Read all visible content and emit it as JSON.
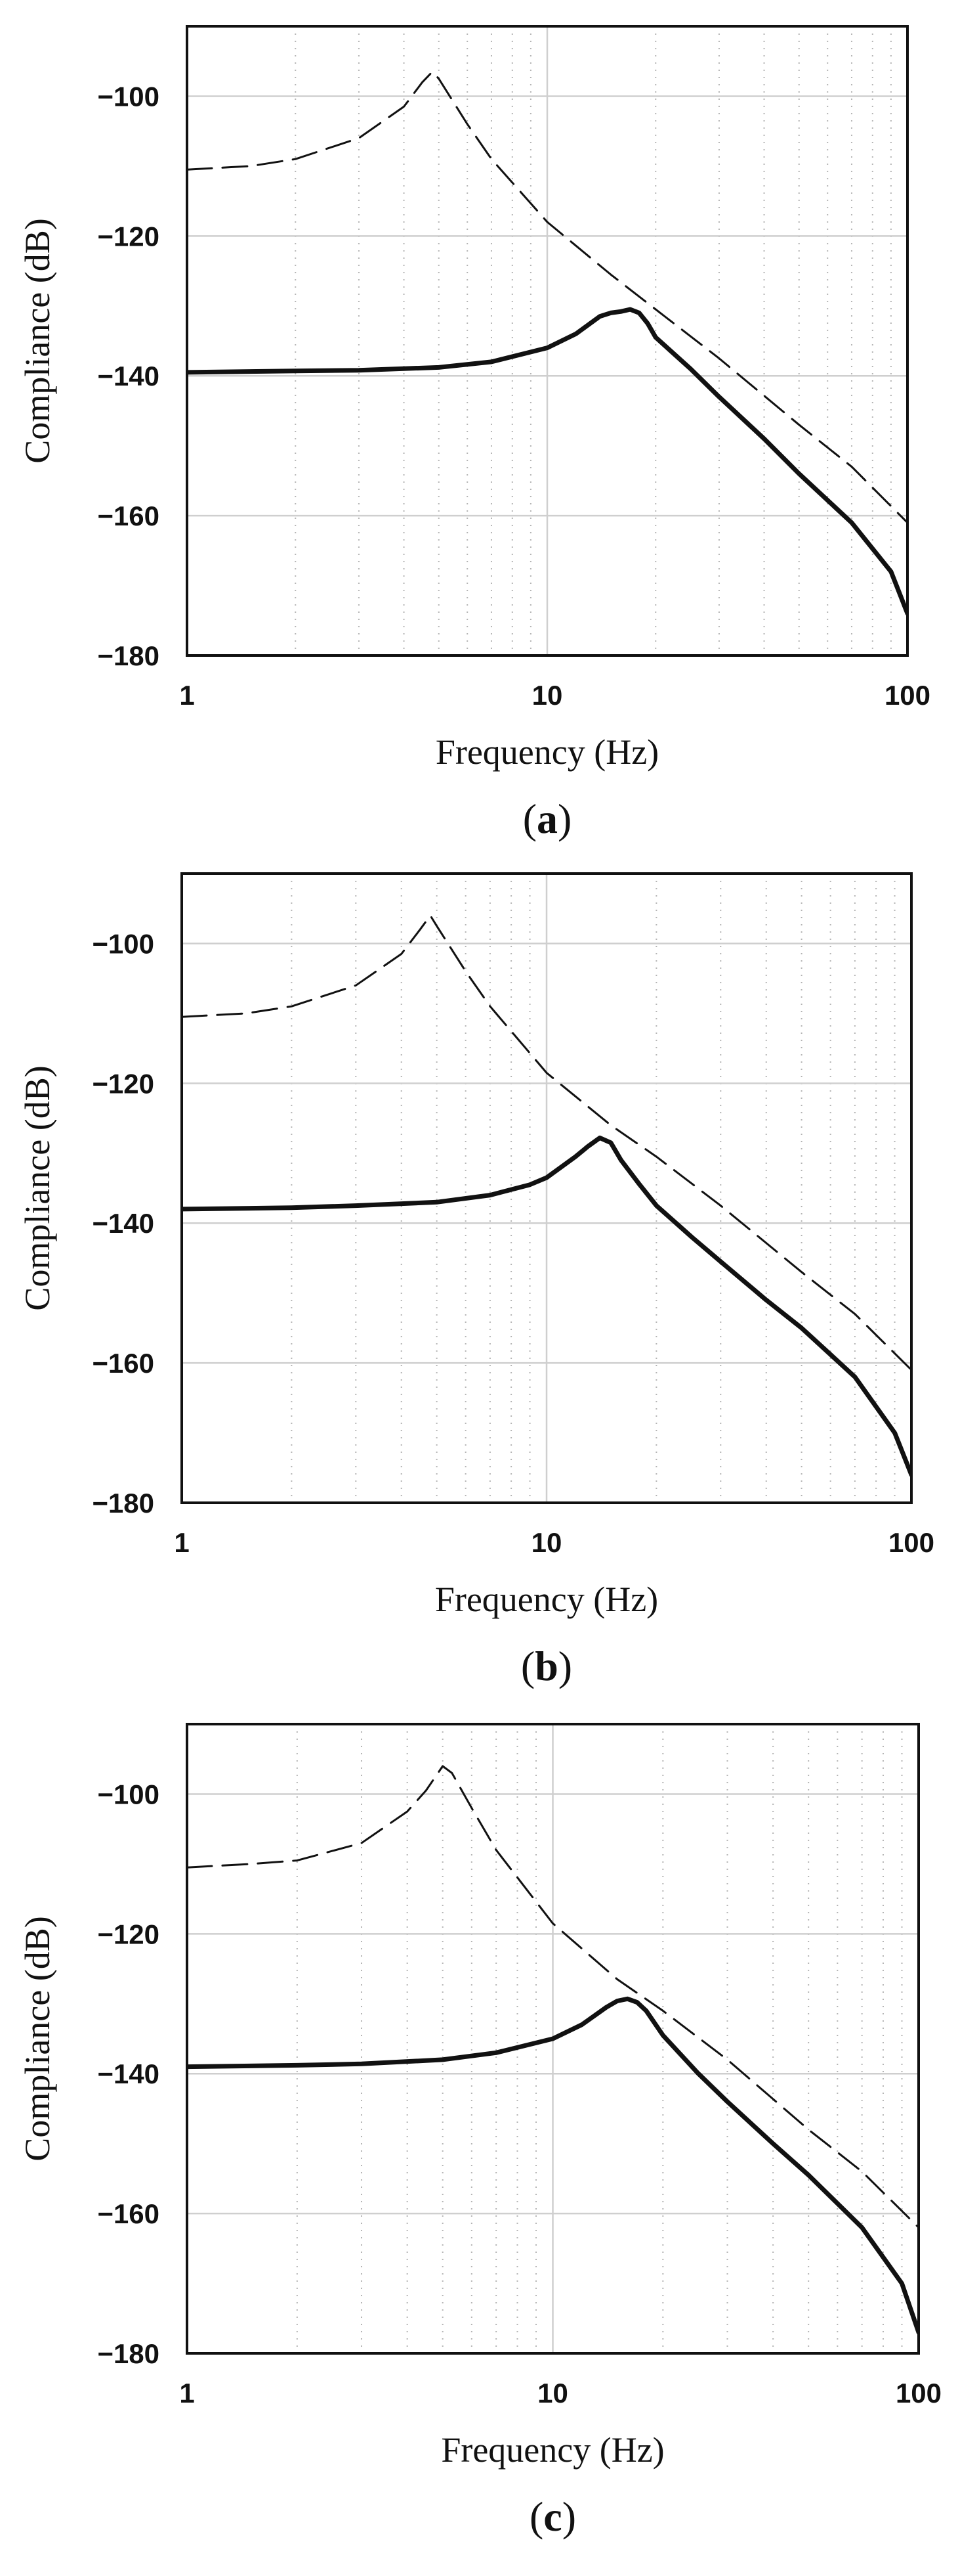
{
  "chart_data": [
    {
      "type": "line",
      "panel": "a",
      "caption": {
        "open": "(",
        "letter": "a",
        "close": ")"
      },
      "xlabel": "Frequency (Hz)",
      "ylabel": "Compliance (dB)",
      "xscale": "log",
      "xlim": [
        1,
        100
      ],
      "ylim": [
        -180,
        -90
      ],
      "xticks": [
        1,
        10,
        100
      ],
      "xtick_labels": [
        "1",
        "10",
        "100"
      ],
      "yticks": [
        -100,
        -120,
        -140,
        -160,
        -180
      ],
      "ytick_labels": [
        "−100",
        "−120",
        "−140",
        "−160",
        "−180"
      ],
      "grid": true,
      "series": [
        {
          "name": "dashed",
          "style": "dashed",
          "x": [
            1,
            1.5,
            2,
            3,
            4,
            4.5,
            4.8,
            5,
            6,
            7,
            10,
            15,
            20,
            30,
            50,
            70,
            100
          ],
          "y": [
            -110.5,
            -110,
            -109,
            -106,
            -101.5,
            -98,
            -96.5,
            -97.5,
            -104,
            -109,
            -118,
            -125.5,
            -130.5,
            -137.5,
            -147,
            -153,
            -161
          ]
        },
        {
          "name": "solid",
          "style": "solid",
          "x": [
            1,
            2,
            3,
            5,
            7,
            10,
            12,
            14,
            15,
            16,
            17,
            18,
            19,
            20,
            25,
            30,
            40,
            50,
            70,
            90,
            100
          ],
          "y": [
            -139.5,
            -139.3,
            -139.2,
            -138.8,
            -138,
            -136,
            -134,
            -131.5,
            -131,
            -130.8,
            -130.5,
            -131,
            -132.5,
            -134.5,
            -139,
            -143,
            -149,
            -154,
            -161,
            -168,
            -174
          ]
        }
      ]
    },
    {
      "type": "line",
      "panel": "b",
      "caption": {
        "open": "(",
        "letter": "b",
        "close": ")"
      },
      "xlabel": "Frequency (Hz)",
      "ylabel": "Compliance (dB)",
      "xscale": "log",
      "xlim": [
        1,
        100
      ],
      "ylim": [
        -180,
        -90
      ],
      "xticks": [
        1,
        10,
        100
      ],
      "xtick_labels": [
        "1",
        "10",
        "100"
      ],
      "yticks": [
        -100,
        -120,
        -140,
        -160,
        -180
      ],
      "ytick_labels": [
        "−100",
        "−120",
        "−140",
        "−160",
        "−180"
      ],
      "grid": true,
      "series": [
        {
          "name": "dashed",
          "style": "dashed",
          "x": [
            1,
            1.5,
            2,
            3,
            4,
            4.5,
            4.8,
            5,
            6,
            7,
            10,
            15,
            20,
            30,
            50,
            70,
            100
          ],
          "y": [
            -110.5,
            -110,
            -109,
            -106,
            -101.5,
            -98,
            -96,
            -97.5,
            -104,
            -109,
            -118.5,
            -126,
            -130.5,
            -137.5,
            -147,
            -153,
            -161
          ]
        },
        {
          "name": "solid",
          "style": "solid",
          "x": [
            1,
            2,
            3,
            5,
            7,
            9,
            10,
            12,
            13,
            14,
            15,
            16,
            18,
            20,
            25,
            30,
            40,
            50,
            70,
            90,
            100
          ],
          "y": [
            -138,
            -137.8,
            -137.5,
            -137,
            -136,
            -134.5,
            -133.5,
            -130.5,
            -129,
            -127.8,
            -128.5,
            -131,
            -134.5,
            -137.5,
            -142,
            -145.5,
            -151,
            -155,
            -162,
            -170,
            -176
          ]
        }
      ]
    },
    {
      "type": "line",
      "panel": "c",
      "caption": {
        "open": "(",
        "letter": "c",
        "close": ")"
      },
      "xlabel": "Frequency (Hz)",
      "ylabel": "Compliance (dB)",
      "xscale": "log",
      "xlim": [
        1,
        100
      ],
      "ylim": [
        -180,
        -90
      ],
      "xticks": [
        1,
        10,
        100
      ],
      "xtick_labels": [
        "1",
        "10",
        "100"
      ],
      "yticks": [
        -100,
        -120,
        -140,
        -160,
        -180
      ],
      "ytick_labels": [
        "−100",
        "−120",
        "−140",
        "−160",
        "−180"
      ],
      "grid": true,
      "series": [
        {
          "name": "dashed",
          "style": "dashed",
          "x": [
            1,
            1.5,
            2,
            3,
            4,
            4.5,
            5,
            5.3,
            6,
            7,
            10,
            15,
            20,
            30,
            50,
            70,
            100
          ],
          "y": [
            -110.5,
            -110,
            -109.5,
            -107,
            -102.5,
            -99.5,
            -96,
            -97,
            -102,
            -108,
            -118.5,
            -126.5,
            -131,
            -138,
            -148,
            -154,
            -162
          ]
        },
        {
          "name": "solid",
          "style": "solid",
          "x": [
            1,
            2,
            3,
            5,
            7,
            10,
            12,
            14,
            15,
            16,
            17,
            18,
            20,
            25,
            30,
            40,
            50,
            70,
            90,
            100
          ],
          "y": [
            -139,
            -138.8,
            -138.6,
            -138,
            -137,
            -135,
            -133,
            -130.5,
            -129.6,
            -129.3,
            -129.8,
            -131,
            -134.5,
            -140,
            -144,
            -150,
            -154.5,
            -162,
            -170,
            -177
          ]
        }
      ]
    }
  ]
}
